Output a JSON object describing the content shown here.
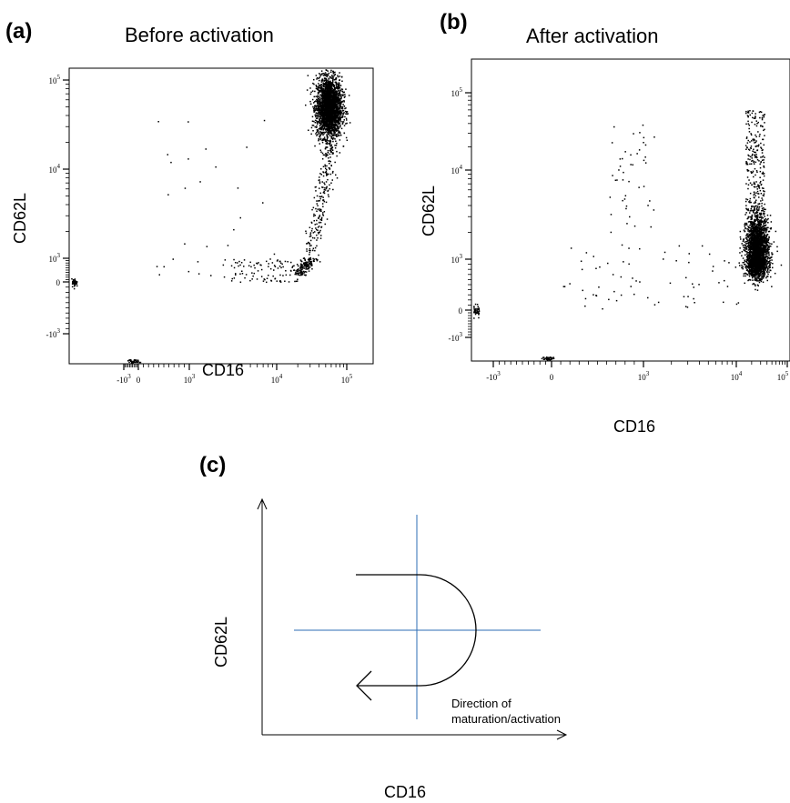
{
  "panels": {
    "a": {
      "letter": "(a)",
      "title": "Before activation"
    },
    "b": {
      "letter": "(b)",
      "title": "After activation"
    },
    "c": {
      "letter": "(c)"
    }
  },
  "chart_data": [
    {
      "id": "a",
      "type": "scatter",
      "title": "Before activation",
      "xlabel": "CD16",
      "ylabel": "CD62L",
      "xscale": "biexponential",
      "yscale": "biexponential",
      "xlim": [
        -2000,
        150000
      ],
      "ylim": [
        -2000,
        200000
      ],
      "x_ticks": [
        {
          "label": "-10",
          "exp": "3",
          "value": -1000
        },
        {
          "label": "0",
          "exp": "",
          "value": 0
        },
        {
          "label": "10",
          "exp": "3",
          "value": 1000
        },
        {
          "label": "10",
          "exp": "4",
          "value": 10000
        },
        {
          "label": "10",
          "exp": "5",
          "value": 100000
        }
      ],
      "y_ticks": [
        {
          "label": "-10",
          "exp": "3",
          "value": -1000
        },
        {
          "label": "0",
          "exp": "",
          "value": 0
        },
        {
          "label": "10",
          "exp": "3",
          "value": 1000
        },
        {
          "label": "10",
          "exp": "4",
          "value": 10000
        },
        {
          "label": "10",
          "exp": "5",
          "value": 100000
        }
      ],
      "populations": [
        {
          "description": "dense CD16-high CD62L-high cluster",
          "x_center": 55000,
          "y_center": 50000,
          "approx_events": 2600
        },
        {
          "description": "tail descending toward low CD62L",
          "x_range": [
            10000,
            60000
          ],
          "y_range": [
            300,
            20000
          ],
          "approx_events": 350
        },
        {
          "description": "low CD62L, mid CD16 events",
          "x_range": [
            3000,
            20000
          ],
          "y_range": [
            0,
            1000
          ],
          "approx_events": 90
        },
        {
          "description": "sparse CD16-low events",
          "x_range": [
            300,
            10000
          ],
          "y_range": [
            200,
            50000
          ],
          "approx_events": 35
        }
      ]
    },
    {
      "id": "b",
      "type": "scatter",
      "title": "After activation",
      "xlabel": "CD16",
      "ylabel": "CD62L",
      "xscale": "biexponential",
      "yscale": "biexponential",
      "xlim": [
        -2000,
        150000
      ],
      "ylim": [
        -2000,
        200000
      ],
      "x_ticks": [
        {
          "label": "-10",
          "exp": "3",
          "value": -1000
        },
        {
          "label": "0",
          "exp": "",
          "value": 0
        },
        {
          "label": "10",
          "exp": "3",
          "value": 1000
        },
        {
          "label": "10",
          "exp": "4",
          "value": 10000
        },
        {
          "label": "10",
          "exp": "5",
          "value": 100000
        }
      ],
      "y_ticks": [
        {
          "label": "-10",
          "exp": "3",
          "value": -1000
        },
        {
          "label": "0",
          "exp": "",
          "value": 0
        },
        {
          "label": "10",
          "exp": "3",
          "value": 1000
        },
        {
          "label": "10",
          "exp": "4",
          "value": 10000
        },
        {
          "label": "10",
          "exp": "5",
          "value": 100000
        }
      ],
      "populations": [
        {
          "description": "dense CD16-high CD62L-low/mid cluster",
          "x_center": 25000,
          "y_center": 1200,
          "approx_events": 2600
        },
        {
          "description": "CD16-high CD62L-high streak",
          "x_range": [
            15000,
            35000
          ],
          "y_range": [
            3000,
            60000
          ],
          "approx_events": 260
        },
        {
          "description": "CD16-low CD62L-high events",
          "x_range": [
            600,
            1300
          ],
          "y_range": [
            2000,
            40000
          ],
          "approx_events": 45
        },
        {
          "description": "scattered low CD62L events",
          "x_range": [
            100,
            12000
          ],
          "y_range": [
            0,
            1500
          ],
          "approx_events": 70
        }
      ]
    }
  ],
  "diagram": {
    "xlabel": "CD16",
    "ylabel": "CD62L",
    "annotation_line1": "Direction of",
    "annotation_line2": "maturation/activation",
    "line_color": "#2e6db4",
    "arrow_color": "#000000"
  }
}
